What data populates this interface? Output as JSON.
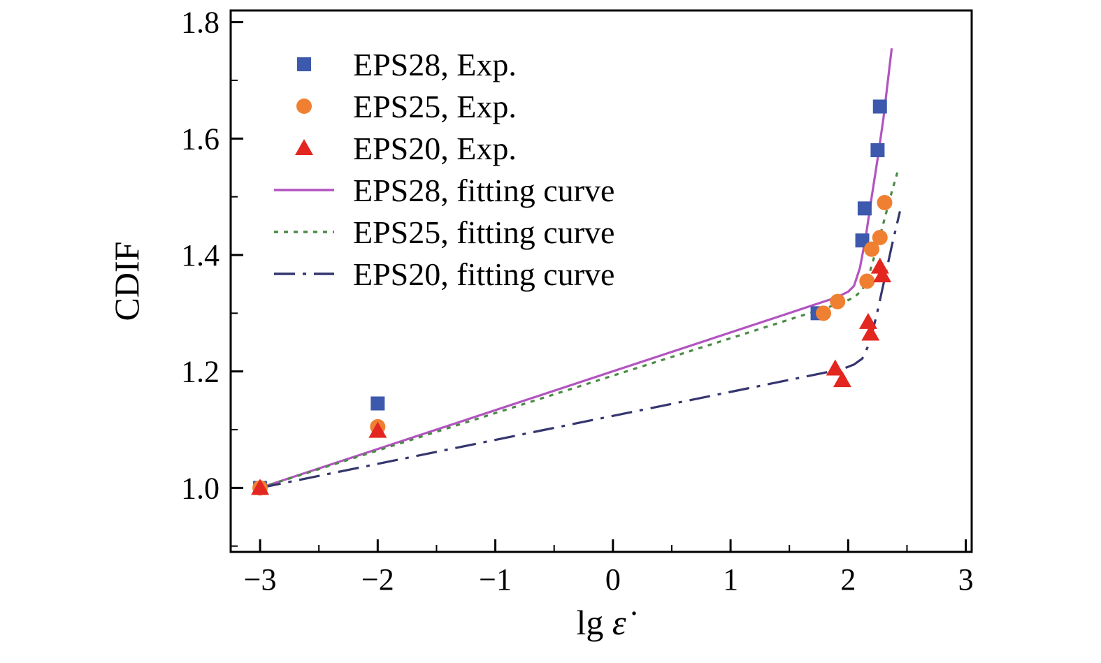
{
  "figure": {
    "background": "#ffffff"
  },
  "chart_data": {
    "type": "scatter+line",
    "title": "",
    "ylabel": "CDIF",
    "xlabel_parts": [
      {
        "text": "lg ",
        "italic": false
      },
      {
        "text": "ε̇",
        "italic": true
      }
    ],
    "xlim": [
      -3.25,
      3.05
    ],
    "ylim": [
      0.89,
      1.82
    ],
    "xticks": [
      -3,
      -2,
      -1,
      0,
      1,
      2,
      3
    ],
    "xtick_labels": [
      "−3",
      "−2",
      "−1",
      "0",
      "1",
      "2",
      "3"
    ],
    "yticks": [
      1.0,
      1.2,
      1.4,
      1.6,
      1.8
    ],
    "ytick_labels": [
      "1.0",
      "1.2",
      "1.4",
      "1.6",
      "1.8"
    ],
    "grid": false,
    "axis_color": "#000000",
    "legend_position": "top-left",
    "scatter_series": [
      {
        "name": "EPS28, Exp.",
        "marker": "square",
        "color": "#3c59ad",
        "points": [
          [
            -3,
            1.0
          ],
          [
            -2,
            1.145
          ],
          [
            1.74,
            1.3
          ],
          [
            2.12,
            1.425
          ],
          [
            2.14,
            1.48
          ],
          [
            2.25,
            1.58
          ],
          [
            2.27,
            1.655
          ]
        ]
      },
      {
        "name": "EPS25, Exp.",
        "marker": "circle",
        "color": "#ef8032",
        "points": [
          [
            -3,
            1.0
          ],
          [
            -2,
            1.105
          ],
          [
            1.79,
            1.3
          ],
          [
            1.91,
            1.32
          ],
          [
            2.16,
            1.355
          ],
          [
            2.2,
            1.41
          ],
          [
            2.27,
            1.43
          ],
          [
            2.31,
            1.49
          ]
        ]
      },
      {
        "name": "EPS20, Exp.",
        "marker": "triangle",
        "color": "#e3261f",
        "points": [
          [
            -3,
            1.0
          ],
          [
            -2,
            1.098
          ],
          [
            1.89,
            1.205
          ],
          [
            1.95,
            1.185
          ],
          [
            2.17,
            1.285
          ],
          [
            2.19,
            1.265
          ],
          [
            2.27,
            1.38
          ],
          [
            2.29,
            1.365
          ]
        ]
      }
    ],
    "line_series": [
      {
        "name": "EPS28, fitting curve",
        "style": "solid",
        "color": "#b254c0",
        "points": [
          [
            -3,
            1.0
          ],
          [
            1.9,
            1.327
          ],
          [
            2.0,
            1.337
          ],
          [
            2.05,
            1.347
          ],
          [
            2.1,
            1.378
          ],
          [
            2.15,
            1.432
          ],
          [
            2.2,
            1.5
          ],
          [
            2.25,
            1.565
          ],
          [
            2.3,
            1.635
          ],
          [
            2.37,
            1.755
          ]
        ]
      },
      {
        "name": "EPS25, fitting curve",
        "style": "dotted",
        "color": "#4b8a45",
        "points": [
          [
            -3,
            1.0
          ],
          [
            1.95,
            1.318
          ],
          [
            2.05,
            1.327
          ],
          [
            2.12,
            1.34
          ],
          [
            2.18,
            1.368
          ],
          [
            2.24,
            1.41
          ],
          [
            2.3,
            1.455
          ],
          [
            2.37,
            1.508
          ],
          [
            2.43,
            1.55
          ]
        ]
      },
      {
        "name": "EPS20, fitting curve",
        "style": "dashdot",
        "color": "#35366e",
        "points": [
          [
            -3,
            1.0
          ],
          [
            1.95,
            1.204
          ],
          [
            2.05,
            1.212
          ],
          [
            2.12,
            1.222
          ],
          [
            2.18,
            1.248
          ],
          [
            2.24,
            1.295
          ],
          [
            2.3,
            1.35
          ],
          [
            2.37,
            1.415
          ],
          [
            2.44,
            1.475
          ]
        ]
      }
    ]
  }
}
